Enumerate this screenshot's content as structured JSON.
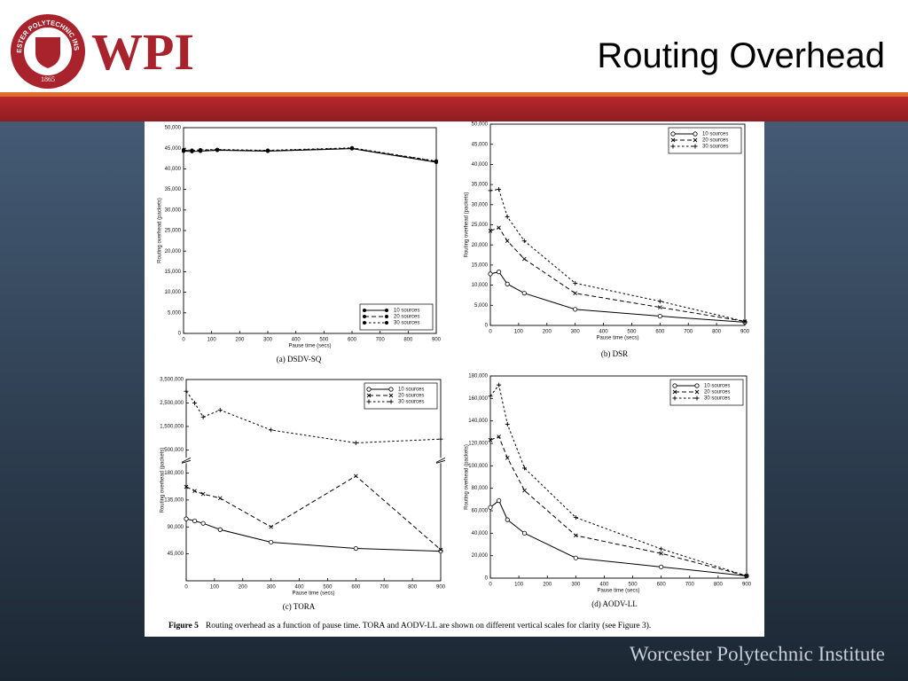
{
  "header": {
    "title": "Routing Overhead",
    "logo_text": "WPI",
    "logo_ring": "WORCESTER POLYTECHNIC INSTITUTE",
    "logo_year": "1865"
  },
  "footer": "Worcester Polytechnic Institute",
  "figure_caption": {
    "label": "Figure 5",
    "text": "Routing overhead as a function of pause time. TORA and AODV-LL are shown on different vertical scales for clarity (see Figure 3)."
  },
  "chart_data": [
    {
      "type": "line",
      "subtitle": "(a) DSDV-SQ",
      "x_label": "Pause time (secs)",
      "y_label": "Routing overhead (packets)",
      "x": [
        0,
        30,
        60,
        120,
        300,
        600,
        900
      ],
      "xlim": [
        0,
        900
      ],
      "xticks": [
        0,
        100,
        200,
        300,
        400,
        500,
        600,
        700,
        800,
        900
      ],
      "ylim": [
        0,
        50000
      ],
      "yticks": [
        0,
        {
          "value": 5000,
          "label": "5,000"
        },
        {
          "value": 10000,
          "label": "10,000"
        },
        {
          "value": 15000,
          "label": "15,000"
        },
        {
          "value": 20000,
          "label": "20,000"
        },
        {
          "value": 25000,
          "label": "25,000"
        },
        {
          "value": 30000,
          "label": "30,000"
        },
        {
          "value": 35000,
          "label": "35,000"
        },
        {
          "value": 40000,
          "label": "40,000"
        },
        {
          "value": 45000,
          "label": "45,000"
        },
        {
          "value": 50000,
          "label": "50,000"
        }
      ],
      "legend": "lower-right",
      "series": [
        {
          "name": "10 sources",
          "color": "#000000",
          "dash": "solid",
          "marker": "dot",
          "values": [
            44300,
            44200,
            44300,
            44500,
            44300,
            44900,
            41600
          ]
        },
        {
          "name": "20 sources",
          "color": "#000000",
          "dash": "dashed",
          "marker": "dot",
          "values": [
            44500,
            44400,
            44500,
            44600,
            44400,
            45000,
            41800
          ]
        },
        {
          "name": "30 sources",
          "color": "#000000",
          "dash": "short-dashed",
          "marker": "dot",
          "values": [
            44600,
            44500,
            44600,
            44700,
            44500,
            45100,
            41900
          ]
        }
      ]
    },
    {
      "type": "line",
      "subtitle": "(b) DSR",
      "x_label": "Pause time (secs)",
      "y_label": "Routing overhead (packets)",
      "x": [
        0,
        30,
        60,
        120,
        300,
        600,
        900
      ],
      "xlim": [
        0,
        900
      ],
      "xticks": [
        0,
        100,
        200,
        300,
        400,
        500,
        600,
        700,
        800,
        900
      ],
      "ylim": [
        0,
        50000
      ],
      "yticks": [
        0,
        {
          "value": 5000,
          "label": "5,000"
        },
        {
          "value": 10000,
          "label": "10,000"
        },
        {
          "value": 15000,
          "label": "15,000"
        },
        {
          "value": 20000,
          "label": "20,000"
        },
        {
          "value": 25000,
          "label": "25,000"
        },
        {
          "value": 30000,
          "label": "30,000"
        },
        {
          "value": 35000,
          "label": "35,000"
        },
        {
          "value": 40000,
          "label": "40,000"
        },
        {
          "value": 45000,
          "label": "45,000"
        },
        {
          "value": 50000,
          "label": "50,000"
        }
      ],
      "legend": "upper-right",
      "series": [
        {
          "name": "10 sources",
          "color": "#000000",
          "dash": "solid",
          "marker": "circle",
          "values": [
            12800,
            13300,
            10300,
            8000,
            4000,
            2300,
            800
          ]
        },
        {
          "name": "20 sources",
          "color": "#000000",
          "dash": "dashed",
          "marker": "cross",
          "values": [
            23500,
            24300,
            21000,
            16500,
            8000,
            4500,
            1000
          ]
        },
        {
          "name": "30 sources",
          "color": "#000000",
          "dash": "short-dashed",
          "marker": "plus",
          "values": [
            33500,
            33800,
            27000,
            21000,
            10500,
            6000,
            1000
          ]
        }
      ]
    },
    {
      "type": "line",
      "subtitle": "(c) TORA",
      "x_label": "Pause time (secs)",
      "y_label": "Routing overhead (packets)",
      "x": [
        0,
        30,
        60,
        120,
        300,
        600,
        900
      ],
      "xlim": [
        0,
        900
      ],
      "xticks": [
        0,
        100,
        200,
        300,
        400,
        500,
        600,
        700,
        800,
        900
      ],
      "ylim": [
        0,
        195000
      ],
      "yticks": [
        {
          "value": 45000,
          "label": "45,000"
        },
        {
          "value": 90000,
          "label": "90,000"
        },
        {
          "value": 135000,
          "label": "135,000"
        },
        {
          "value": 180000,
          "label": "180,000"
        }
      ],
      "y2lim": [
        200000,
        3500000
      ],
      "y2ticks": [
        {
          "value": 500000,
          "label": "500,000"
        },
        {
          "value": 1500000,
          "label": "1,500,000"
        },
        {
          "value": 2500000,
          "label": "2,500,000"
        },
        {
          "value": 3500000,
          "label": "3,500,000"
        }
      ],
      "legend": "upper-right",
      "series": [
        {
          "name": "10 sources",
          "color": "#000000",
          "dash": "solid",
          "marker": "circle",
          "values": [
            103500,
            100000,
            96000,
            85500,
            64500,
            54000,
            49500
          ]
        },
        {
          "name": "20 sources",
          "color": "#000000",
          "dash": "dashed",
          "marker": "cross",
          "values": [
            157000,
            150000,
            145000,
            138000,
            90000,
            175000,
            52000
          ]
        },
        {
          "name": "30 sources",
          "color": "#000000",
          "dash": "short-dashed",
          "marker": "plus",
          "axis": "y2",
          "values": [
            3000000,
            2500000,
            1900000,
            2200000,
            1350000,
            800000,
            960000
          ]
        }
      ]
    },
    {
      "type": "line",
      "subtitle": "(d) AODV-LL",
      "x_label": "Pause time (secs)",
      "y_label": "Routing overhead (packets)",
      "x": [
        0,
        30,
        60,
        120,
        300,
        600,
        900
      ],
      "xlim": [
        0,
        900
      ],
      "xticks": [
        0,
        100,
        200,
        300,
        400,
        500,
        600,
        700,
        800,
        900
      ],
      "ylim": [
        0,
        180000
      ],
      "yticks": [
        0,
        {
          "value": 20000,
          "label": "20,000"
        },
        {
          "value": 40000,
          "label": "40,000"
        },
        {
          "value": 60000,
          "label": "60,000"
        },
        {
          "value": 80000,
          "label": "80,000"
        },
        {
          "value": 100000,
          "label": "100,000"
        },
        {
          "value": 120000,
          "label": "120,000"
        },
        {
          "value": 140000,
          "label": "140,000"
        },
        {
          "value": 160000,
          "label": "160,000"
        },
        {
          "value": 180000,
          "label": "180,000"
        }
      ],
      "legend": "upper-right",
      "series": [
        {
          "name": "10 sources",
          "color": "#000000",
          "dash": "solid",
          "marker": "circle",
          "values": [
            63000,
            69000,
            52000,
            40000,
            18000,
            10000,
            2000
          ]
        },
        {
          "name": "20 sources",
          "color": "#000000",
          "dash": "dashed",
          "marker": "cross",
          "values": [
            123000,
            126000,
            107000,
            78000,
            38000,
            22000,
            2000
          ]
        },
        {
          "name": "30 sources",
          "color": "#000000",
          "dash": "short-dashed",
          "marker": "plus",
          "values": [
            162000,
            172000,
            137000,
            98000,
            54000,
            26000,
            2000
          ]
        }
      ]
    }
  ]
}
